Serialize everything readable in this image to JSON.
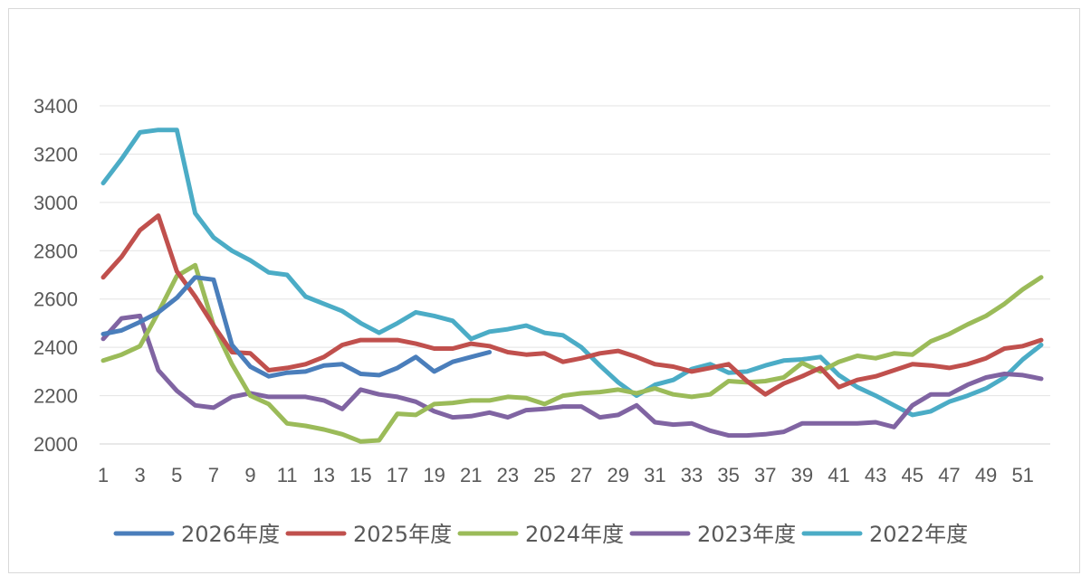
{
  "chart_data": {
    "type": "line",
    "title": "",
    "xlabel": "",
    "ylabel": "",
    "ylim": [
      2000,
      3400
    ],
    "yticks": [
      2000,
      2200,
      2400,
      2600,
      2800,
      3000,
      3200,
      3400
    ],
    "xticks": [
      1,
      3,
      5,
      7,
      9,
      11,
      13,
      15,
      17,
      19,
      21,
      23,
      25,
      27,
      29,
      31,
      33,
      35,
      37,
      39,
      41,
      43,
      45,
      47,
      49,
      51
    ],
    "xlim": [
      1,
      52
    ],
    "grid": true,
    "legend_position": "bottom",
    "series": [
      {
        "name": "2026年度",
        "color": "#4a7ebb",
        "x": [
          1,
          2,
          3,
          4,
          5,
          6,
          7,
          8,
          9,
          10,
          11,
          12,
          13,
          14,
          15,
          16,
          17,
          18,
          19,
          20,
          21,
          22
        ],
        "values": [
          2455,
          2470,
          2505,
          2545,
          2605,
          2690,
          2680,
          2410,
          2320,
          2280,
          2295,
          2300,
          2325,
          2330,
          2290,
          2285,
          2315,
          2360,
          2300,
          2340,
          2360,
          2380
        ]
      },
      {
        "name": "2025年度",
        "color": "#c0504d",
        "x": [
          1,
          2,
          3,
          4,
          5,
          6,
          7,
          8,
          9,
          10,
          11,
          12,
          13,
          14,
          15,
          16,
          17,
          18,
          19,
          20,
          21,
          22,
          23,
          24,
          25,
          26,
          27,
          28,
          29,
          30,
          31,
          32,
          33,
          34,
          35,
          36,
          37,
          38,
          39,
          40,
          41,
          42,
          43,
          44,
          45,
          46,
          47,
          48,
          49,
          50,
          51,
          52
        ],
        "values": [
          2690,
          2775,
          2885,
          2945,
          2715,
          2610,
          2490,
          2380,
          2375,
          2305,
          2315,
          2330,
          2360,
          2410,
          2430,
          2430,
          2430,
          2415,
          2395,
          2395,
          2415,
          2405,
          2380,
          2370,
          2375,
          2340,
          2355,
          2375,
          2385,
          2360,
          2330,
          2320,
          2300,
          2315,
          2330,
          2260,
          2205,
          2250,
          2280,
          2315,
          2235,
          2265,
          2280,
          2305,
          2330,
          2325,
          2315,
          2330,
          2355,
          2395,
          2405,
          2430
        ]
      },
      {
        "name": "2024年度",
        "color": "#9bbb59",
        "x": [
          1,
          2,
          3,
          4,
          5,
          6,
          7,
          8,
          9,
          10,
          11,
          12,
          13,
          14,
          15,
          16,
          17,
          18,
          19,
          20,
          21,
          22,
          23,
          24,
          25,
          26,
          27,
          28,
          29,
          30,
          31,
          32,
          33,
          34,
          35,
          36,
          37,
          38,
          39,
          40,
          41,
          42,
          43,
          44,
          45,
          46,
          47,
          48,
          49,
          50,
          51,
          52
        ],
        "values": [
          2345,
          2370,
          2405,
          2545,
          2695,
          2740,
          2490,
          2330,
          2200,
          2165,
          2085,
          2075,
          2060,
          2040,
          2010,
          2015,
          2125,
          2120,
          2165,
          2170,
          2180,
          2180,
          2195,
          2190,
          2165,
          2200,
          2210,
          2215,
          2225,
          2210,
          2230,
          2205,
          2195,
          2205,
          2260,
          2255,
          2260,
          2275,
          2335,
          2300,
          2340,
          2365,
          2355,
          2375,
          2370,
          2425,
          2455,
          2495,
          2530,
          2580,
          2640,
          2690
        ]
      },
      {
        "name": "2023年度",
        "color": "#8064a2",
        "x": [
          1,
          2,
          3,
          4,
          5,
          6,
          7,
          8,
          9,
          10,
          11,
          12,
          13,
          14,
          15,
          16,
          17,
          18,
          19,
          20,
          21,
          22,
          23,
          24,
          25,
          26,
          27,
          28,
          29,
          30,
          31,
          32,
          33,
          34,
          35,
          36,
          37,
          38,
          39,
          40,
          41,
          42,
          43,
          44,
          45,
          46,
          47,
          48,
          49,
          50,
          51,
          52
        ],
        "values": [
          2435,
          2520,
          2530,
          2305,
          2220,
          2160,
          2150,
          2195,
          2210,
          2195,
          2195,
          2195,
          2180,
          2145,
          2225,
          2205,
          2195,
          2175,
          2135,
          2110,
          2115,
          2130,
          2110,
          2140,
          2145,
          2155,
          2155,
          2110,
          2120,
          2160,
          2090,
          2080,
          2085,
          2055,
          2035,
          2035,
          2040,
          2050,
          2085,
          2085,
          2085,
          2085,
          2090,
          2070,
          2160,
          2205,
          2205,
          2245,
          2275,
          2290,
          2285,
          2270
        ]
      },
      {
        "name": "2022年度",
        "color": "#4bacc6",
        "x": [
          1,
          2,
          3,
          4,
          5,
          6,
          7,
          8,
          9,
          10,
          11,
          12,
          13,
          14,
          15,
          16,
          17,
          18,
          19,
          20,
          21,
          22,
          23,
          24,
          25,
          26,
          27,
          28,
          29,
          30,
          31,
          32,
          33,
          34,
          35,
          36,
          37,
          38,
          39,
          40,
          41,
          42,
          43,
          44,
          45,
          46,
          47,
          48,
          49,
          50,
          51,
          52
        ],
        "values": [
          3080,
          3180,
          3290,
          3300,
          3300,
          2955,
          2855,
          2800,
          2760,
          2710,
          2700,
          2610,
          2580,
          2550,
          2500,
          2460,
          2500,
          2545,
          2530,
          2510,
          2435,
          2465,
          2475,
          2490,
          2460,
          2450,
          2400,
          2325,
          2255,
          2200,
          2245,
          2265,
          2310,
          2330,
          2295,
          2300,
          2325,
          2345,
          2350,
          2360,
          2285,
          2235,
          2200,
          2160,
          2120,
          2135,
          2175,
          2200,
          2230,
          2275,
          2350,
          2410
        ]
      }
    ]
  }
}
